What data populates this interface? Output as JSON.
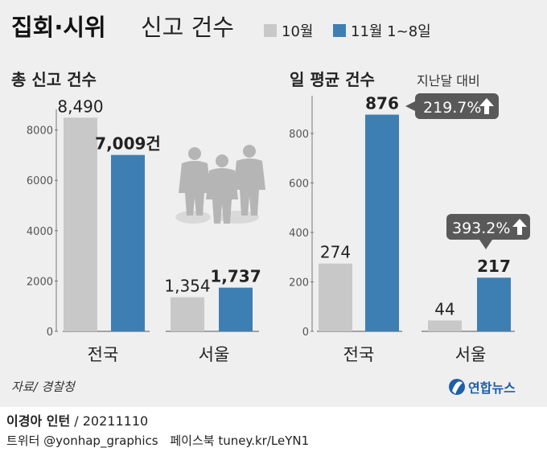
{
  "header": {
    "title_bold": "집회·시위",
    "title_light": "신고 건수"
  },
  "legend": [
    {
      "label": "10월",
      "color": "#c8c8c8"
    },
    {
      "label": "11월 1~8일",
      "color": "#3e7fb3"
    }
  ],
  "chart_data": [
    {
      "type": "bar",
      "title": "총 신고 건수",
      "ylim": [
        0,
        8500
      ],
      "yticks": [
        "0",
        "2000",
        "4000",
        "6000",
        "8000"
      ],
      "categories": [
        "전국",
        "서울"
      ],
      "series": [
        {
          "name": "10월",
          "values": [
            8490,
            1354
          ],
          "labels": [
            "8,490",
            "1,354"
          ]
        },
        {
          "name": "11월 1~8일",
          "values": [
            7009,
            1737
          ],
          "labels": [
            "7,009건",
            "1,737"
          ]
        }
      ]
    },
    {
      "type": "bar",
      "title": "일 평균 건수",
      "subtitle": "지난달 대비",
      "ylim": [
        0,
        920
      ],
      "yticks": [
        "0",
        "200",
        "400",
        "600",
        "800"
      ],
      "categories": [
        "전국",
        "서울"
      ],
      "series": [
        {
          "name": "10월",
          "values": [
            274,
            44
          ],
          "labels": [
            "274",
            "44"
          ]
        },
        {
          "name": "11월 1~8일",
          "values": [
            876,
            217
          ],
          "labels": [
            "876",
            "217"
          ]
        }
      ],
      "annotations": [
        "219.7%",
        "393.2%"
      ]
    }
  ],
  "colors": {
    "gray": "#c8c8c8",
    "blue": "#3e7fb3",
    "callout": "#595959",
    "text": "#222222"
  },
  "source": "자료/ 경찰청",
  "logo": "연합뉴스",
  "credit": {
    "author": "이경아 인턴",
    "date": "/ 20211110"
  },
  "social": {
    "twitter": "트위터 @yonhap_graphics",
    "facebook": "페이스북 tuney.kr/LeYN1"
  }
}
